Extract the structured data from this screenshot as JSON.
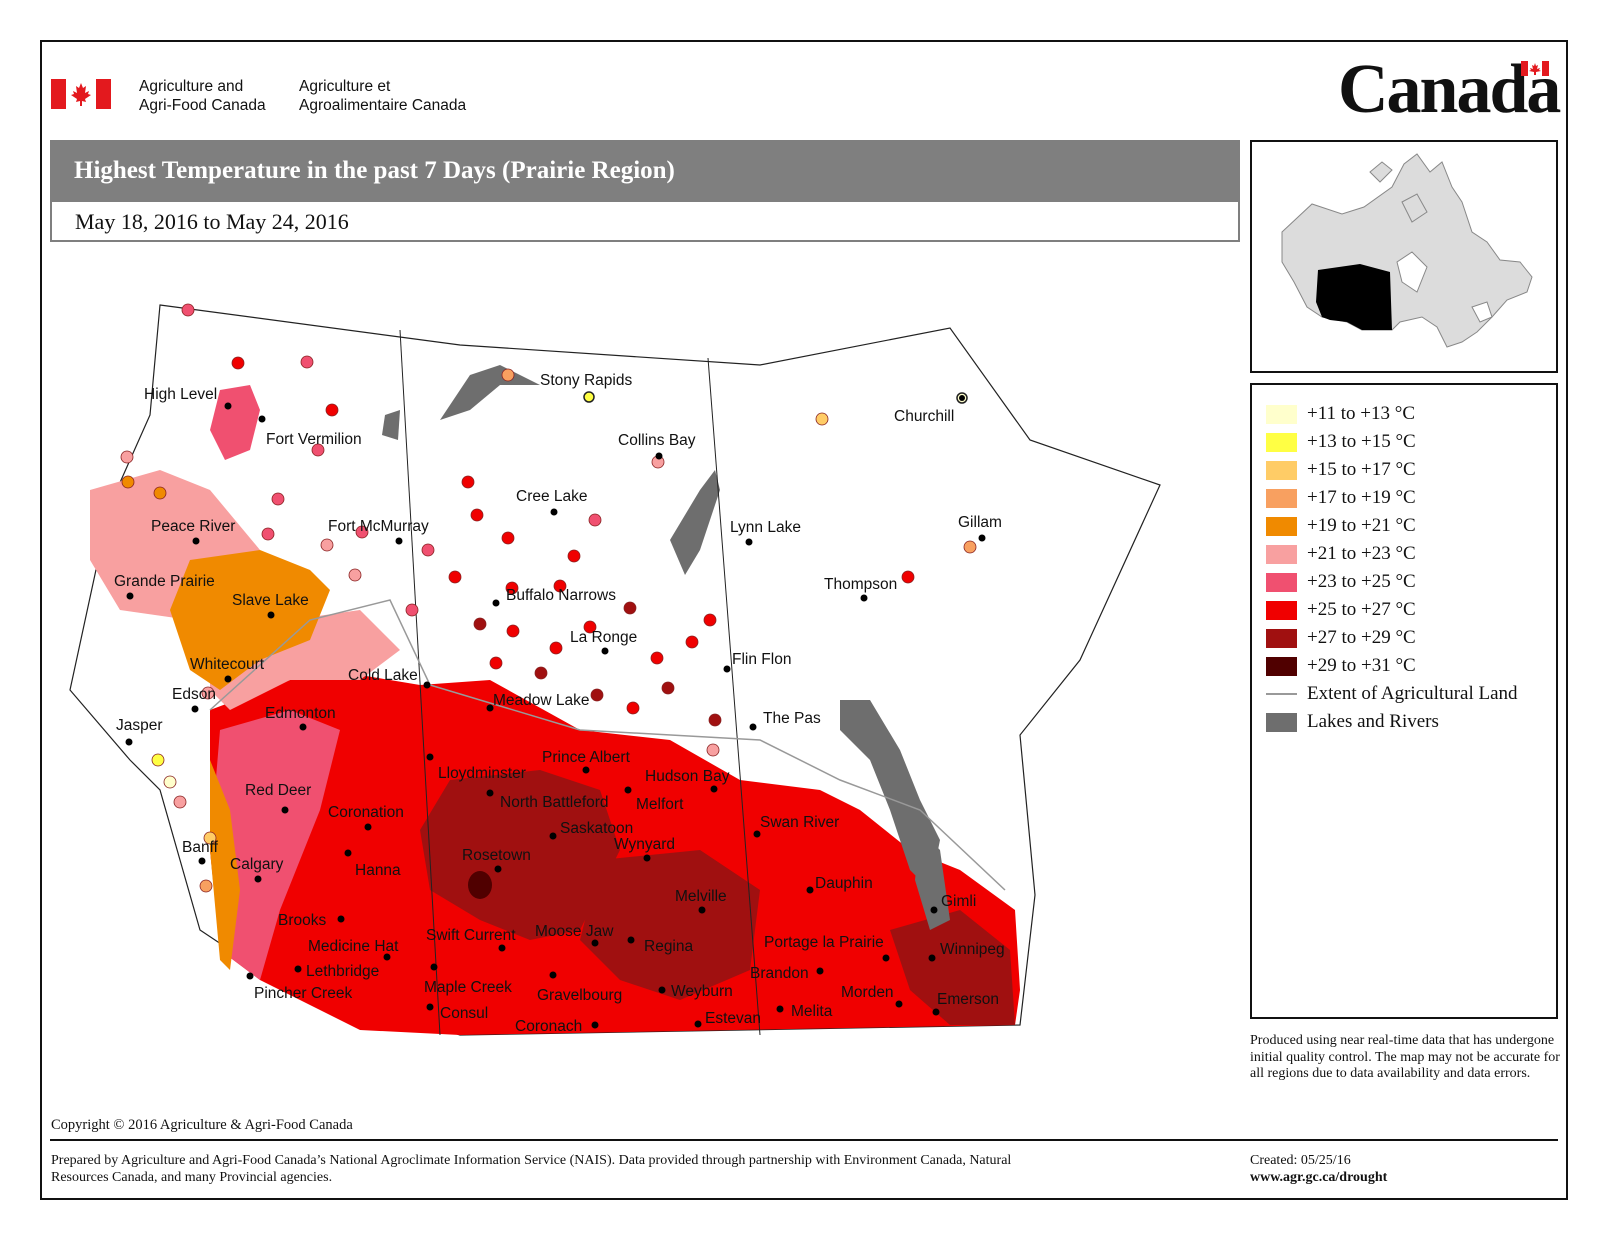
{
  "header": {
    "department_en": [
      "Agriculture and",
      "Agri-Food Canada"
    ],
    "department_fr": [
      "Agriculture et",
      "Agroalimentaire Canada"
    ],
    "wordmark": "Canada"
  },
  "title": "Highest Temperature in the past 7 Days (Prairie Region)",
  "date_range": "May 18, 2016 to May 24, 2016",
  "legend": {
    "classes": [
      {
        "label": "+11 to +13 °C",
        "color": "#ffffcc"
      },
      {
        "label": "+13 to +15 °C",
        "color": "#ffff44"
      },
      {
        "label": "+15 to +17 °C",
        "color": "#ffcc66"
      },
      {
        "label": "+17 to +19 °C",
        "color": "#f8a060"
      },
      {
        "label": "+19 to +21 °C",
        "color": "#f08a00"
      },
      {
        "label": "+21 to +23 °C",
        "color": "#f8a0a0"
      },
      {
        "label": "+23 to +25 °C",
        "color": "#f05070"
      },
      {
        "label": "+25 to +27 °C",
        "color": "#f00000"
      },
      {
        "label": "+27 to +29 °C",
        "color": "#a01010"
      },
      {
        "label": "+29 to +31 °C",
        "color": "#500000"
      }
    ],
    "agri_line_label": "Extent of Agricultural Land",
    "lakes_label": "Lakes and Rivers",
    "lakes_color": "#6e6e6e",
    "agri_line_color": "#999999"
  },
  "note": "Produced using near real-time data that has undergone initial quality control.  The map may not be accurate for all regions due to data availability and data errors.",
  "copyright": "Copyright © 2016 Agriculture & Agri-Food Canada",
  "prepared": "Prepared by Agriculture and Agri-Food Canada’s National Agroclimate Information Service (NAIS).   Data provided through partnership with Environment Canada, Natural Resources Canada, and many Provincial agencies.",
  "created": "Created: 05/25/16",
  "url": "www.agr.gc.ca/drought",
  "cities": [
    "High Level",
    "Fort Vermilion",
    "Peace River",
    "Fort McMurray",
    "Grande Prairie",
    "Slave Lake",
    "Whitecourt",
    "Edson",
    "Cold Lake",
    "Jasper",
    "Edmonton",
    "Red Deer",
    "Coronation",
    "Banff",
    "Calgary",
    "Hanna",
    "Brooks",
    "Medicine Hat",
    "Lethbridge",
    "Pincher Creek",
    "Stony Rapids",
    "Collins Bay",
    "Cree Lake",
    "Buffalo Narrows",
    "La Ronge",
    "Meadow Lake",
    "Prince Albert",
    "Lloydminster",
    "North Battleford",
    "Melfort",
    "Hudson Bay",
    "Saskatoon",
    "Wynyard",
    "Rosetown",
    "Swift Current",
    "Moose Jaw",
    "Regina",
    "Melville",
    "Maple Creek",
    "Gravelbourg",
    "Weyburn",
    "Consul",
    "Coronach",
    "Estevan",
    "Churchill",
    "Lynn Lake",
    "Gillam",
    "Thompson",
    "Flin Flon",
    "The Pas",
    "Swan River",
    "Dauphin",
    "Gimli",
    "Portage la Prairie",
    "Winnipeg",
    "Brandon",
    "Morden",
    "Melita",
    "Emerson"
  ]
}
